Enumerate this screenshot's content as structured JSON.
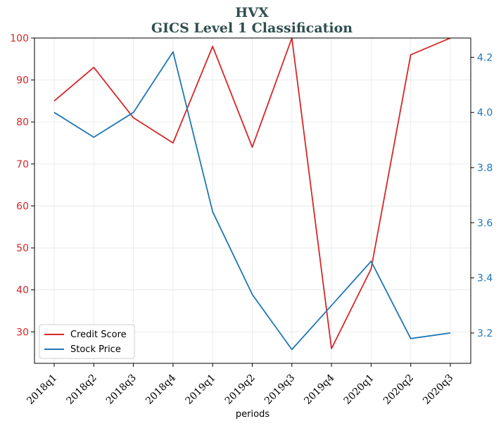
{
  "chart_data": {
    "type": "line",
    "title": "HVX",
    "subtitle": "GICS Level 1 Classification",
    "xlabel": "periods",
    "categories": [
      "2018q1",
      "2018q2",
      "2018q3",
      "2018q4",
      "2019q1",
      "2019q2",
      "2019q3",
      "2019q4",
      "2020q1",
      "2020q2",
      "2020q3"
    ],
    "series": [
      {
        "name": "Credit Score",
        "axis": "left",
        "color": "#d62728",
        "values": [
          85,
          93,
          81,
          75,
          98,
          74,
          100,
          26,
          45,
          96,
          100
        ]
      },
      {
        "name": "Stock Price",
        "axis": "right",
        "color": "#1f77b4",
        "values": [
          4.0,
          3.91,
          4.0,
          4.22,
          3.64,
          3.34,
          3.14,
          3.3,
          3.46,
          3.18,
          3.2
        ]
      }
    ],
    "y_left": {
      "ylim": [
        22.5,
        100
      ],
      "ticks": [
        30,
        40,
        50,
        60,
        70,
        80,
        90,
        100
      ],
      "color": "#d62728"
    },
    "y_right": {
      "ylim": [
        3.09,
        4.27
      ],
      "ticks": [
        3.2,
        3.4,
        3.6,
        3.8,
        4.0,
        4.2
      ],
      "tick_labels": [
        "3.2",
        "3.4",
        "3.6",
        "3.8",
        "4.0",
        "4.2"
      ],
      "color": "#1f77b4"
    },
    "grid": true,
    "legend_position": "lower-left"
  }
}
